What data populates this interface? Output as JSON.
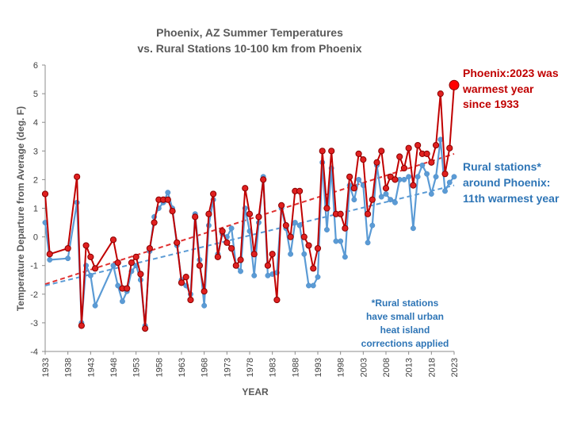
{
  "chart_data": {
    "type": "line",
    "title_line1": "Phoenix, AZ Summer Temperatures",
    "title_line2": "vs. Rural Stations 10-100 km from Phoenix",
    "xlabel": "YEAR",
    "ylabel": "Temperature Departure from Average (deg. F)",
    "ylim": [
      -4,
      6
    ],
    "xlim": [
      1933,
      2023
    ],
    "y_ticks": [
      "-4",
      "-3",
      "-2",
      "-1",
      "0",
      "1",
      "2",
      "3",
      "4",
      "5",
      "6"
    ],
    "x_ticks": [
      "1933",
      "1938",
      "1943",
      "1948",
      "1953",
      "1958",
      "1963",
      "1968",
      "1973",
      "1978",
      "1983",
      "1988",
      "1993",
      "1998",
      "2003",
      "2008",
      "2013",
      "2018",
      "2023"
    ],
    "grid": false,
    "series": [
      {
        "name": "Phoenix",
        "color": "#c00000",
        "points": [
          [
            1933,
            1.5
          ],
          [
            1934,
            -0.6
          ],
          [
            1938,
            -0.4
          ],
          [
            1940,
            2.1
          ],
          [
            1941,
            -3.1
          ],
          [
            1942,
            -0.3
          ],
          [
            1943,
            -0.7
          ],
          [
            1944,
            -1.1
          ],
          [
            1948,
            -0.1
          ],
          [
            1949,
            -0.9
          ],
          [
            1950,
            -1.8
          ],
          [
            1951,
            -1.8
          ],
          [
            1952,
            -0.9
          ],
          [
            1953,
            -0.7
          ],
          [
            1954,
            -1.3
          ],
          [
            1955,
            -3.2
          ],
          [
            1956,
            -0.4
          ],
          [
            1957,
            0.5
          ],
          [
            1958,
            1.3
          ],
          [
            1959,
            1.3
          ],
          [
            1960,
            1.3
          ],
          [
            1961,
            0.9
          ],
          [
            1962,
            -0.2
          ],
          [
            1963,
            -1.6
          ],
          [
            1964,
            -1.4
          ],
          [
            1965,
            -2.2
          ],
          [
            1966,
            0.7
          ],
          [
            1967,
            -1.0
          ],
          [
            1968,
            -1.9
          ],
          [
            1969,
            0.8
          ],
          [
            1970,
            1.5
          ],
          [
            1971,
            -0.7
          ],
          [
            1972,
            0.2
          ],
          [
            1973,
            -0.2
          ],
          [
            1974,
            -0.4
          ],
          [
            1975,
            -1.0
          ],
          [
            1976,
            -0.8
          ],
          [
            1977,
            1.7
          ],
          [
            1978,
            0.8
          ],
          [
            1979,
            -0.6
          ],
          [
            1980,
            0.7
          ],
          [
            1981,
            2.0
          ],
          [
            1982,
            -1.0
          ],
          [
            1983,
            -0.6
          ],
          [
            1984,
            -2.2
          ],
          [
            1985,
            1.1
          ],
          [
            1986,
            0.4
          ],
          [
            1987,
            0.0
          ],
          [
            1988,
            1.6
          ],
          [
            1989,
            1.6
          ],
          [
            1990,
            0.0
          ],
          [
            1991,
            -0.3
          ],
          [
            1992,
            -1.1
          ],
          [
            1993,
            -0.4
          ],
          [
            1994,
            3.0
          ],
          [
            1995,
            1.0
          ],
          [
            1996,
            3.0
          ],
          [
            1997,
            0.8
          ],
          [
            1998,
            0.8
          ],
          [
            1999,
            0.3
          ],
          [
            2000,
            2.1
          ],
          [
            2001,
            1.7
          ],
          [
            2002,
            2.9
          ],
          [
            2003,
            2.7
          ],
          [
            2004,
            0.8
          ],
          [
            2005,
            1.3
          ],
          [
            2006,
            2.6
          ],
          [
            2007,
            3.0
          ],
          [
            2008,
            1.7
          ],
          [
            2009,
            2.1
          ],
          [
            2010,
            2.0
          ],
          [
            2011,
            2.8
          ],
          [
            2012,
            2.4
          ],
          [
            2013,
            3.1
          ],
          [
            2014,
            1.8
          ],
          [
            2015,
            3.2
          ],
          [
            2016,
            2.9
          ],
          [
            2017,
            2.9
          ],
          [
            2018,
            2.6
          ],
          [
            2019,
            3.2
          ],
          [
            2020,
            5.0
          ],
          [
            2021,
            2.2
          ],
          [
            2022,
            3.1
          ],
          [
            2023,
            5.3
          ]
        ]
      },
      {
        "name": "Rural stations",
        "color": "#5b9bd5",
        "points": [
          [
            1933,
            0.5
          ],
          [
            1934,
            -0.8
          ],
          [
            1938,
            -0.75
          ],
          [
            1940,
            1.2
          ],
          [
            1941,
            -3.0
          ],
          [
            1942,
            -1.0
          ],
          [
            1943,
            -1.35
          ],
          [
            1944,
            -2.4
          ],
          [
            1948,
            -1.0
          ],
          [
            1949,
            -1.7
          ],
          [
            1950,
            -2.25
          ],
          [
            1951,
            -1.9
          ],
          [
            1952,
            -1.2
          ],
          [
            1953,
            -1.0
          ],
          [
            1954,
            -1.5
          ],
          [
            1955,
            -3.1
          ],
          [
            1956,
            -0.5
          ],
          [
            1957,
            0.7
          ],
          [
            1958,
            1.0
          ],
          [
            1959,
            1.2
          ],
          [
            1960,
            1.55
          ],
          [
            1961,
            1.0
          ],
          [
            1962,
            -0.3
          ],
          [
            1963,
            -1.5
          ],
          [
            1964,
            -1.7
          ],
          [
            1965,
            -2.0
          ],
          [
            1966,
            0.8
          ],
          [
            1967,
            -0.8
          ],
          [
            1968,
            -2.4
          ],
          [
            1969,
            0.4
          ],
          [
            1970,
            1.3
          ],
          [
            1971,
            -0.6
          ],
          [
            1972,
            0.1
          ],
          [
            1973,
            0.0
          ],
          [
            1974,
            0.3
          ],
          [
            1975,
            -1.0
          ],
          [
            1976,
            -1.2
          ],
          [
            1977,
            1.0
          ],
          [
            1978,
            0.2
          ],
          [
            1979,
            -1.35
          ],
          [
            1980,
            0.5
          ],
          [
            1981,
            2.1
          ],
          [
            1982,
            -1.35
          ],
          [
            1983,
            -1.3
          ],
          [
            1984,
            -1.25
          ],
          [
            1985,
            1.0
          ],
          [
            1986,
            0.3
          ],
          [
            1987,
            -0.6
          ],
          [
            1988,
            0.5
          ],
          [
            1989,
            0.4
          ],
          [
            1990,
            -0.6
          ],
          [
            1991,
            -1.7
          ],
          [
            1992,
            -1.7
          ],
          [
            1993,
            -1.4
          ],
          [
            1994,
            2.6
          ],
          [
            1995,
            0.25
          ],
          [
            1996,
            2.4
          ],
          [
            1997,
            -0.15
          ],
          [
            1998,
            -0.15
          ],
          [
            1999,
            -0.7
          ],
          [
            2000,
            1.8
          ],
          [
            2001,
            1.3
          ],
          [
            2002,
            2.0
          ],
          [
            2003,
            1.8
          ],
          [
            2004,
            -0.2
          ],
          [
            2005,
            0.4
          ],
          [
            2006,
            2.5
          ],
          [
            2007,
            1.4
          ],
          [
            2008,
            1.5
          ],
          [
            2009,
            1.3
          ],
          [
            2010,
            1.2
          ],
          [
            2011,
            2.0
          ],
          [
            2012,
            2.0
          ],
          [
            2013,
            2.1
          ],
          [
            2014,
            0.3
          ],
          [
            2015,
            2.1
          ],
          [
            2016,
            2.5
          ],
          [
            2017,
            2.2
          ],
          [
            2018,
            1.5
          ],
          [
            2019,
            2.1
          ],
          [
            2020,
            3.4
          ],
          [
            2021,
            1.6
          ],
          [
            2022,
            1.9
          ],
          [
            2023,
            2.1
          ]
        ]
      }
    ],
    "trendlines": [
      {
        "series": "Phoenix",
        "color": "#e03030",
        "from": [
          1933,
          -1.65
        ],
        "to": [
          2023,
          2.9
        ]
      },
      {
        "series": "Rural stations",
        "color": "#5b9bd5",
        "from": [
          1933,
          -1.7
        ],
        "to": [
          2023,
          1.8
        ]
      }
    ],
    "annotations": {
      "phoenix": [
        "Phoenix:2023 was",
        "warmest year",
        "since 1933"
      ],
      "rural": [
        "Rural stations*",
        "around Phoenix:",
        "11th warmest year"
      ],
      "note": [
        "*Rural stations",
        "have small urban",
        "heat island",
        "corrections applied"
      ]
    }
  }
}
